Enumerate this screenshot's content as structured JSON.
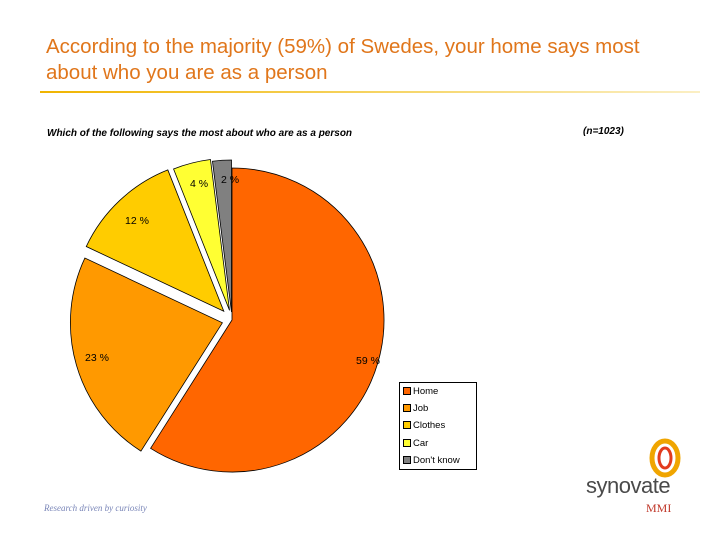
{
  "page": {
    "title": "According to the majority (59%) of Swedes, your home says most about who you are as a person",
    "footer": "Research driven by curiosity",
    "logo": {
      "brand": "synovate",
      "sub": "MMI"
    }
  },
  "colors": {
    "title": "#e0761b",
    "home": "#ff6600",
    "job": "#ff9900",
    "clothes": "#ffcc00",
    "car": "#ffff33",
    "dont_know": "#808080"
  },
  "chart_data": {
    "type": "pie",
    "title": "Which of the following says the most about who are as a person",
    "subtitle": "(n=1023)",
    "series": [
      {
        "name": "Home",
        "value": 59,
        "label": "59 %",
        "color": "#ff6600",
        "explode": 0
      },
      {
        "name": "Job",
        "value": 23,
        "label": "23 %",
        "color": "#ff9900",
        "explode": 10
      },
      {
        "name": "Clothes",
        "value": 12,
        "label": "12 %",
        "color": "#ffcc00",
        "explode": 12
      },
      {
        "name": "Car",
        "value": 4,
        "label": "4 %",
        "color": "#ffff33",
        "explode": 10
      },
      {
        "name": "Don't know",
        "value": 2,
        "label": "2 %",
        "color": "#808080",
        "explode": 8
      }
    ],
    "legend_position": "bottom-right"
  }
}
